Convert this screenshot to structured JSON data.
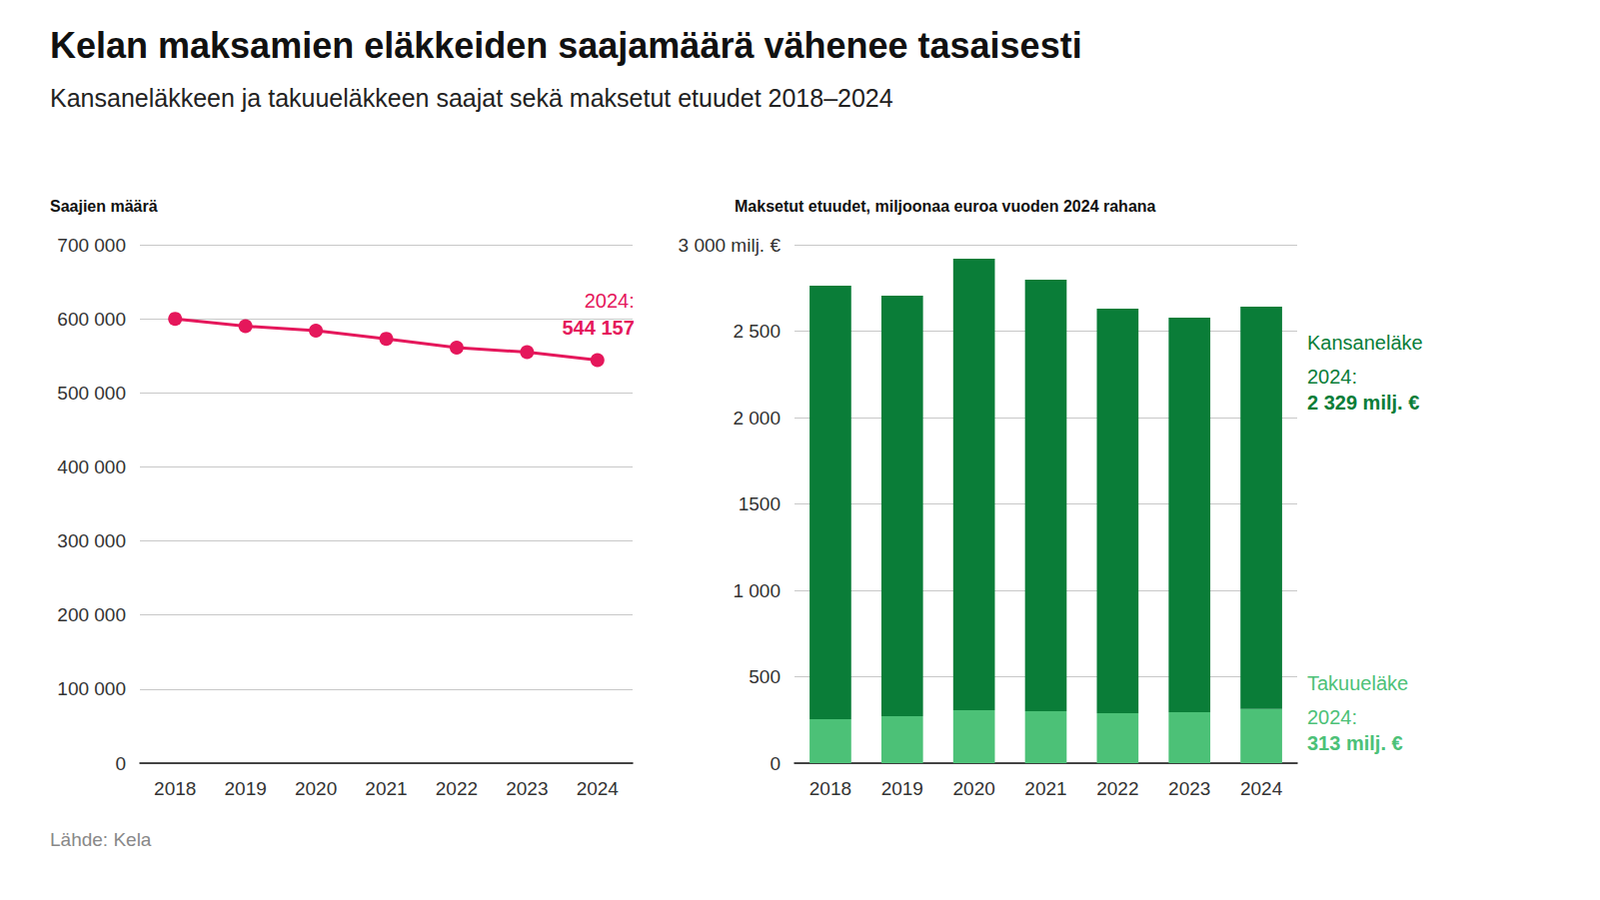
{
  "title": "Kelan maksamien eläkkeiden saajamäärä vähenee tasaisesti",
  "subtitle": "Kansaneläkkeen ja takuueläkkeen saajat sekä maksetut etuudet 2018–2024",
  "source": "Lähde: Kela",
  "chart_data": [
    {
      "type": "line",
      "y_label": "Saajien määrä",
      "categories": [
        "2018",
        "2019",
        "2020",
        "2021",
        "2022",
        "2023",
        "2024"
      ],
      "values": [
        600000,
        590000,
        584000,
        573000,
        561000,
        555000,
        544157
      ],
      "color": "#e5175b",
      "marker": "circle",
      "annotation": [
        "2024:",
        "544 157"
      ],
      "ylim": [
        0,
        700000
      ],
      "yticks": [
        0,
        {
          "value": 100000,
          "label": "100 000"
        },
        {
          "value": 200000,
          "label": "200 000"
        },
        {
          "value": 300000,
          "label": "300 000"
        },
        {
          "value": 400000,
          "label": "400 000"
        },
        {
          "value": 500000,
          "label": "500 000"
        },
        {
          "value": 600000,
          "label": "600 000"
        },
        {
          "value": 700000,
          "label": "700 000"
        }
      ],
      "grid": true
    },
    {
      "type": "bar",
      "stacked": true,
      "y_label": "Maksetut etuudet, miljoonaa euroa vuoden 2024 rahana",
      "categories": [
        "2018",
        "2019",
        "2020",
        "2021",
        "2022",
        "2023",
        "2024"
      ],
      "series": [
        {
          "name": "Takuueläke",
          "color": "#4cc177",
          "values": [
            254,
            272,
            306,
            301,
            289,
            295,
            313
          ],
          "annotation": [
            "2024:",
            "313 milj. €"
          ]
        },
        {
          "name": "Kansaneläke",
          "color": "#0a7d38",
          "values": [
            2509,
            2433,
            2613,
            2497,
            2341,
            2283,
            2329
          ],
          "annotation": [
            "2024:",
            "2 329 milj. €"
          ]
        }
      ],
      "ylim": [
        0,
        3000
      ],
      "yticks": [
        0,
        500,
        {
          "value": 1000,
          "label": "1 000"
        },
        1500,
        {
          "value": 2000,
          "label": "2 000"
        },
        {
          "value": 2500,
          "label": "2 500"
        },
        {
          "value": 3000,
          "label": "3 000 milj. €"
        }
      ],
      "grid": true
    }
  ]
}
